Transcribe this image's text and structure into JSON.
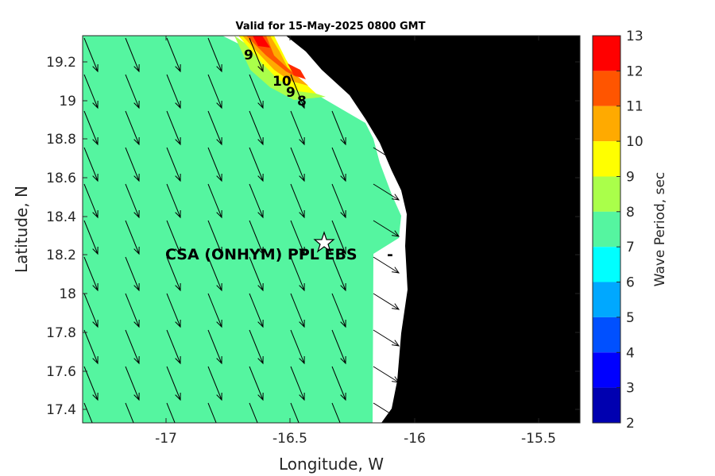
{
  "title": "Valid for 15-May-2025 0800 GMT",
  "xlabel": "Longitude, W",
  "ylabel": "Latitude, N",
  "colorbar_label": "Wave Period, sec",
  "site_label": "CSA (ONHYM) PPL EBS",
  "x_ticks": [
    "-17",
    "-16.5",
    "-16",
    "-15.5"
  ],
  "y_ticks": [
    "19.2",
    "19",
    "18.8",
    "18.6",
    "18.4",
    "18.2",
    "18",
    "17.8",
    "17.6",
    "17.4"
  ],
  "colorbar_ticks": [
    "13",
    "12",
    "11",
    "10",
    "9",
    "8",
    "7",
    "6",
    "5",
    "4",
    "3",
    "2"
  ],
  "contour_labels": [
    "9",
    "10",
    "9",
    "8"
  ],
  "colors": {
    "land": "#000000",
    "background_period": "#55f5a0",
    "scale": [
      "#0000b0",
      "#0000ff",
      "#0050ff",
      "#00a8ff",
      "#00ffff",
      "#55f5a0",
      "#aaff4a",
      "#ffff00",
      "#ffaa00",
      "#ff5500",
      "#ff0000"
    ]
  },
  "chart_data": {
    "type": "heatmap",
    "title": "Valid for 15-May-2025 0800 GMT",
    "xlabel": "Longitude, W",
    "ylabel": "Latitude, N",
    "xlim": [
      -17.33,
      -15.33
    ],
    "ylim": [
      17.33,
      19.33
    ],
    "colorbar": {
      "label": "Wave Period, sec",
      "min": 2,
      "max": 13,
      "step": 1
    },
    "dominant_wave_period_sec": 7.5,
    "peak_wave_period_sec": 12.5,
    "wave_direction": "toward south-southeast",
    "site": {
      "label": "CSA (ONHYM) PPL EBS",
      "lon": -16.35,
      "lat": 18.28
    }
  }
}
